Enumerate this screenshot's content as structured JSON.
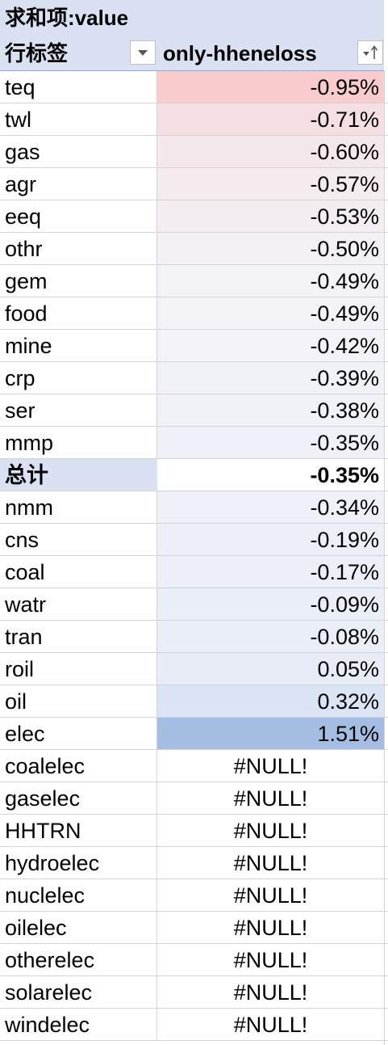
{
  "pivot": {
    "title": "求和项:value",
    "row_header": "行标签",
    "column_header": "only-hheneloss",
    "filter_icon": "filter-dropdown-icon",
    "sort_icon": "sort-filter-icon",
    "colors": {
      "header_bg": "#d9e1f2",
      "negative_max": "#f8cbcd",
      "positive_max": "#a4bde3",
      "neutral": "#ffffff"
    },
    "rows": [
      {
        "label": "teq",
        "value": "-0.95%",
        "num": -0.95
      },
      {
        "label": "twl",
        "value": "-0.71%",
        "num": -0.71
      },
      {
        "label": "gas",
        "value": "-0.60%",
        "num": -0.6
      },
      {
        "label": "agr",
        "value": "-0.57%",
        "num": -0.57
      },
      {
        "label": "eeq",
        "value": "-0.53%",
        "num": -0.53
      },
      {
        "label": "othr",
        "value": "-0.50%",
        "num": -0.5
      },
      {
        "label": "gem",
        "value": "-0.49%",
        "num": -0.49
      },
      {
        "label": "food",
        "value": "-0.49%",
        "num": -0.49
      },
      {
        "label": "mine",
        "value": "-0.42%",
        "num": -0.42
      },
      {
        "label": "crp",
        "value": "-0.39%",
        "num": -0.39
      },
      {
        "label": "ser",
        "value": "-0.38%",
        "num": -0.38
      },
      {
        "label": "mmp",
        "value": "-0.35%",
        "num": -0.35
      },
      {
        "label": "总计",
        "value": "-0.35%",
        "num": -0.35,
        "total": true
      },
      {
        "label": "nmm",
        "value": "-0.34%",
        "num": -0.34
      },
      {
        "label": "cns",
        "value": "-0.19%",
        "num": -0.19
      },
      {
        "label": "coal",
        "value": "-0.17%",
        "num": -0.17
      },
      {
        "label": "watr",
        "value": "-0.09%",
        "num": -0.09
      },
      {
        "label": "tran",
        "value": "-0.08%",
        "num": -0.08
      },
      {
        "label": "roil",
        "value": "0.05%",
        "num": 0.05
      },
      {
        "label": "oil",
        "value": "0.32%",
        "num": 0.32
      },
      {
        "label": "elec",
        "value": "1.51%",
        "num": 1.51
      },
      {
        "label": "coalelec",
        "value": "#NULL!",
        "error": true
      },
      {
        "label": "gaselec",
        "value": "#NULL!",
        "error": true
      },
      {
        "label": "HHTRN",
        "value": "#NULL!",
        "error": true
      },
      {
        "label": "hydroelec",
        "value": "#NULL!",
        "error": true
      },
      {
        "label": "nuclelec",
        "value": "#NULL!",
        "error": true
      },
      {
        "label": "oilelec",
        "value": "#NULL!",
        "error": true
      },
      {
        "label": "otherelec",
        "value": "#NULL!",
        "error": true
      },
      {
        "label": "solarelec",
        "value": "#NULL!",
        "error": true
      },
      {
        "label": "windelec",
        "value": "#NULL!",
        "error": true
      }
    ]
  }
}
